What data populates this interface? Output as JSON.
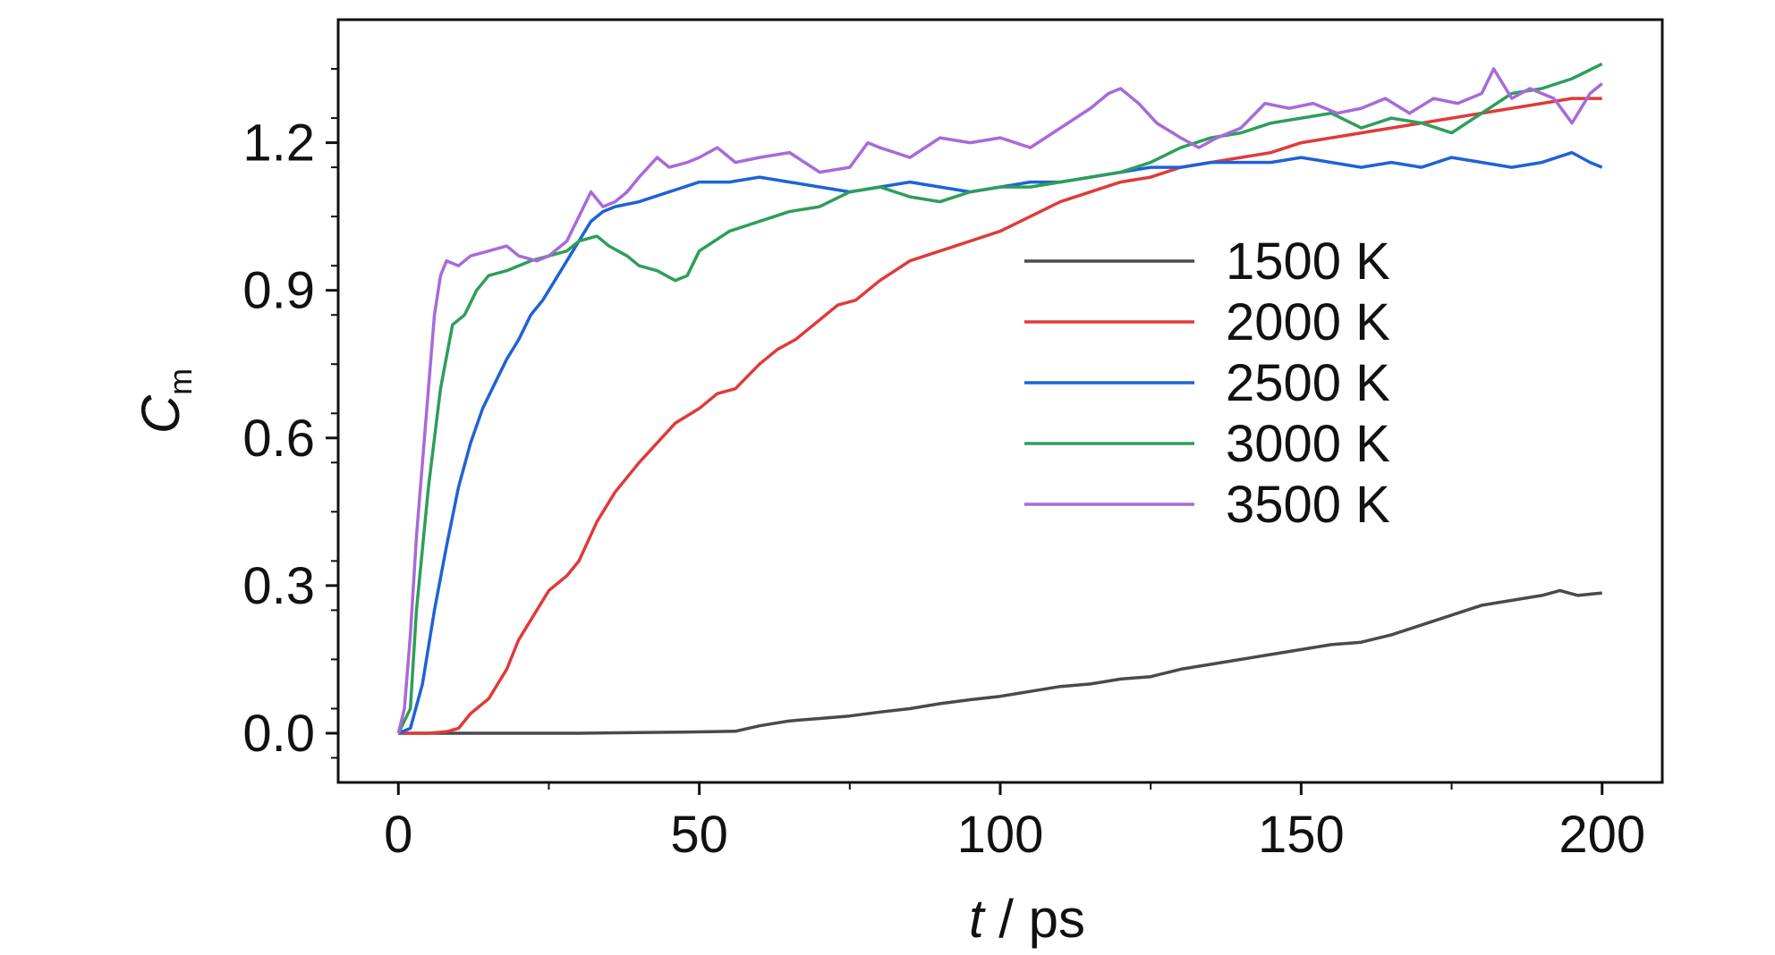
{
  "chart_data": {
    "type": "line",
    "title": "",
    "xlabel_italic": "t",
    "xlabel_rest": " / ps",
    "ylabel_main": "C",
    "ylabel_sub": "m",
    "xlim": [
      -10,
      210
    ],
    "ylim": [
      -0.1,
      1.45
    ],
    "xticks": [
      0,
      50,
      100,
      150,
      200
    ],
    "xtick_labels": [
      "0",
      "50",
      "100",
      "150",
      "200"
    ],
    "yticks": [
      0.0,
      0.3,
      0.6,
      0.9,
      1.2
    ],
    "ytick_labels": [
      "0.0",
      "0.3",
      "0.6",
      "0.9",
      "1.2"
    ],
    "grid": false,
    "legend_position": "center-right",
    "series": [
      {
        "name": "1500 K",
        "color": "#4a4a4a",
        "points": [
          [
            0,
            0
          ],
          [
            10,
            0
          ],
          [
            20,
            0
          ],
          [
            30,
            0
          ],
          [
            38,
            0.001
          ],
          [
            45,
            0.002
          ],
          [
            52,
            0.003
          ],
          [
            56,
            0.004
          ],
          [
            60,
            0.015
          ],
          [
            65,
            0.025
          ],
          [
            70,
            0.03
          ],
          [
            75,
            0.035
          ],
          [
            80,
            0.043
          ],
          [
            85,
            0.05
          ],
          [
            90,
            0.06
          ],
          [
            95,
            0.068
          ],
          [
            100,
            0.075
          ],
          [
            105,
            0.085
          ],
          [
            110,
            0.095
          ],
          [
            115,
            0.1
          ],
          [
            120,
            0.11
          ],
          [
            125,
            0.115
          ],
          [
            130,
            0.13
          ],
          [
            135,
            0.14
          ],
          [
            140,
            0.15
          ],
          [
            145,
            0.16
          ],
          [
            150,
            0.17
          ],
          [
            155,
            0.18
          ],
          [
            160,
            0.185
          ],
          [
            165,
            0.2
          ],
          [
            170,
            0.22
          ],
          [
            175,
            0.24
          ],
          [
            180,
            0.26
          ],
          [
            185,
            0.27
          ],
          [
            190,
            0.28
          ],
          [
            193,
            0.29
          ],
          [
            196,
            0.28
          ],
          [
            200,
            0.285
          ]
        ]
      },
      {
        "name": "2000 K",
        "color": "#e03a3a",
        "points": [
          [
            0,
            0
          ],
          [
            5,
            0
          ],
          [
            8,
            0.003
          ],
          [
            10,
            0.01
          ],
          [
            12,
            0.04
          ],
          [
            15,
            0.07
          ],
          [
            18,
            0.13
          ],
          [
            20,
            0.19
          ],
          [
            23,
            0.25
          ],
          [
            25,
            0.29
          ],
          [
            28,
            0.32
          ],
          [
            30,
            0.35
          ],
          [
            33,
            0.43
          ],
          [
            36,
            0.49
          ],
          [
            40,
            0.55
          ],
          [
            43,
            0.59
          ],
          [
            46,
            0.63
          ],
          [
            50,
            0.66
          ],
          [
            53,
            0.69
          ],
          [
            56,
            0.7
          ],
          [
            60,
            0.75
          ],
          [
            63,
            0.78
          ],
          [
            66,
            0.8
          ],
          [
            70,
            0.84
          ],
          [
            73,
            0.87
          ],
          [
            76,
            0.88
          ],
          [
            80,
            0.92
          ],
          [
            85,
            0.96
          ],
          [
            90,
            0.98
          ],
          [
            95,
            1.0
          ],
          [
            100,
            1.02
          ],
          [
            105,
            1.05
          ],
          [
            110,
            1.08
          ],
          [
            115,
            1.1
          ],
          [
            120,
            1.12
          ],
          [
            125,
            1.13
          ],
          [
            130,
            1.15
          ],
          [
            135,
            1.16
          ],
          [
            140,
            1.17
          ],
          [
            145,
            1.18
          ],
          [
            150,
            1.2
          ],
          [
            155,
            1.21
          ],
          [
            160,
            1.22
          ],
          [
            165,
            1.23
          ],
          [
            170,
            1.24
          ],
          [
            175,
            1.25
          ],
          [
            180,
            1.26
          ],
          [
            185,
            1.27
          ],
          [
            190,
            1.28
          ],
          [
            195,
            1.29
          ],
          [
            200,
            1.29
          ]
        ]
      },
      {
        "name": "2500 K",
        "color": "#1f62d6",
        "points": [
          [
            0,
            0
          ],
          [
            2,
            0.01
          ],
          [
            4,
            0.1
          ],
          [
            6,
            0.25
          ],
          [
            8,
            0.38
          ],
          [
            10,
            0.5
          ],
          [
            12,
            0.59
          ],
          [
            14,
            0.66
          ],
          [
            16,
            0.71
          ],
          [
            18,
            0.76
          ],
          [
            20,
            0.8
          ],
          [
            22,
            0.85
          ],
          [
            24,
            0.88
          ],
          [
            26,
            0.92
          ],
          [
            28,
            0.96
          ],
          [
            30,
            1.0
          ],
          [
            32,
            1.04
          ],
          [
            34,
            1.06
          ],
          [
            36,
            1.07
          ],
          [
            40,
            1.08
          ],
          [
            45,
            1.1
          ],
          [
            50,
            1.12
          ],
          [
            55,
            1.12
          ],
          [
            60,
            1.13
          ],
          [
            65,
            1.12
          ],
          [
            70,
            1.11
          ],
          [
            75,
            1.1
          ],
          [
            80,
            1.11
          ],
          [
            85,
            1.12
          ],
          [
            90,
            1.11
          ],
          [
            95,
            1.1
          ],
          [
            100,
            1.11
          ],
          [
            105,
            1.12
          ],
          [
            110,
            1.12
          ],
          [
            115,
            1.13
          ],
          [
            120,
            1.14
          ],
          [
            125,
            1.15
          ],
          [
            130,
            1.15
          ],
          [
            135,
            1.16
          ],
          [
            140,
            1.16
          ],
          [
            145,
            1.16
          ],
          [
            150,
            1.17
          ],
          [
            155,
            1.16
          ],
          [
            160,
            1.15
          ],
          [
            165,
            1.16
          ],
          [
            170,
            1.15
          ],
          [
            175,
            1.17
          ],
          [
            180,
            1.16
          ],
          [
            185,
            1.15
          ],
          [
            190,
            1.16
          ],
          [
            195,
            1.18
          ],
          [
            198,
            1.16
          ],
          [
            200,
            1.15
          ]
        ]
      },
      {
        "name": "3000 K",
        "color": "#2e9e5a",
        "points": [
          [
            0,
            0
          ],
          [
            2,
            0.05
          ],
          [
            3,
            0.25
          ],
          [
            5,
            0.5
          ],
          [
            7,
            0.7
          ],
          [
            9,
            0.83
          ],
          [
            11,
            0.85
          ],
          [
            13,
            0.9
          ],
          [
            15,
            0.93
          ],
          [
            18,
            0.94
          ],
          [
            20,
            0.95
          ],
          [
            22,
            0.96
          ],
          [
            25,
            0.97
          ],
          [
            28,
            0.98
          ],
          [
            30,
            1.0
          ],
          [
            33,
            1.01
          ],
          [
            35,
            0.99
          ],
          [
            38,
            0.97
          ],
          [
            40,
            0.95
          ],
          [
            43,
            0.94
          ],
          [
            46,
            0.92
          ],
          [
            48,
            0.93
          ],
          [
            50,
            0.98
          ],
          [
            55,
            1.02
          ],
          [
            60,
            1.04
          ],
          [
            65,
            1.06
          ],
          [
            70,
            1.07
          ],
          [
            75,
            1.1
          ],
          [
            80,
            1.11
          ],
          [
            85,
            1.09
          ],
          [
            90,
            1.08
          ],
          [
            95,
            1.1
          ],
          [
            100,
            1.11
          ],
          [
            105,
            1.11
          ],
          [
            110,
            1.12
          ],
          [
            115,
            1.13
          ],
          [
            120,
            1.14
          ],
          [
            125,
            1.16
          ],
          [
            130,
            1.19
          ],
          [
            135,
            1.21
          ],
          [
            140,
            1.22
          ],
          [
            145,
            1.24
          ],
          [
            150,
            1.25
          ],
          [
            155,
            1.26
          ],
          [
            160,
            1.23
          ],
          [
            165,
            1.25
          ],
          [
            170,
            1.24
          ],
          [
            175,
            1.22
          ],
          [
            180,
            1.26
          ],
          [
            185,
            1.3
          ],
          [
            190,
            1.31
          ],
          [
            195,
            1.33
          ],
          [
            200,
            1.36
          ]
        ]
      },
      {
        "name": "3500 K",
        "color": "#a86ad8",
        "points": [
          [
            0,
            0
          ],
          [
            1,
            0.05
          ],
          [
            2,
            0.2
          ],
          [
            3,
            0.4
          ],
          [
            4,
            0.55
          ],
          [
            5,
            0.7
          ],
          [
            6,
            0.85
          ],
          [
            7,
            0.93
          ],
          [
            8,
            0.96
          ],
          [
            10,
            0.95
          ],
          [
            12,
            0.97
          ],
          [
            15,
            0.98
          ],
          [
            18,
            0.99
          ],
          [
            20,
            0.97
          ],
          [
            23,
            0.96
          ],
          [
            25,
            0.97
          ],
          [
            28,
            1.0
          ],
          [
            30,
            1.05
          ],
          [
            32,
            1.1
          ],
          [
            34,
            1.07
          ],
          [
            36,
            1.08
          ],
          [
            38,
            1.1
          ],
          [
            40,
            1.13
          ],
          [
            43,
            1.17
          ],
          [
            45,
            1.15
          ],
          [
            48,
            1.16
          ],
          [
            50,
            1.17
          ],
          [
            53,
            1.19
          ],
          [
            56,
            1.16
          ],
          [
            60,
            1.17
          ],
          [
            65,
            1.18
          ],
          [
            70,
            1.14
          ],
          [
            75,
            1.15
          ],
          [
            78,
            1.2
          ],
          [
            80,
            1.19
          ],
          [
            85,
            1.17
          ],
          [
            90,
            1.21
          ],
          [
            95,
            1.2
          ],
          [
            100,
            1.21
          ],
          [
            105,
            1.19
          ],
          [
            110,
            1.23
          ],
          [
            115,
            1.27
          ],
          [
            118,
            1.3
          ],
          [
            120,
            1.31
          ],
          [
            123,
            1.28
          ],
          [
            126,
            1.24
          ],
          [
            130,
            1.21
          ],
          [
            133,
            1.19
          ],
          [
            136,
            1.21
          ],
          [
            140,
            1.23
          ],
          [
            144,
            1.28
          ],
          [
            148,
            1.27
          ],
          [
            152,
            1.28
          ],
          [
            156,
            1.26
          ],
          [
            160,
            1.27
          ],
          [
            164,
            1.29
          ],
          [
            168,
            1.26
          ],
          [
            172,
            1.29
          ],
          [
            176,
            1.28
          ],
          [
            180,
            1.3
          ],
          [
            182,
            1.35
          ],
          [
            185,
            1.29
          ],
          [
            188,
            1.31
          ],
          [
            192,
            1.29
          ],
          [
            195,
            1.24
          ],
          [
            198,
            1.3
          ],
          [
            200,
            1.32
          ]
        ]
      }
    ]
  }
}
